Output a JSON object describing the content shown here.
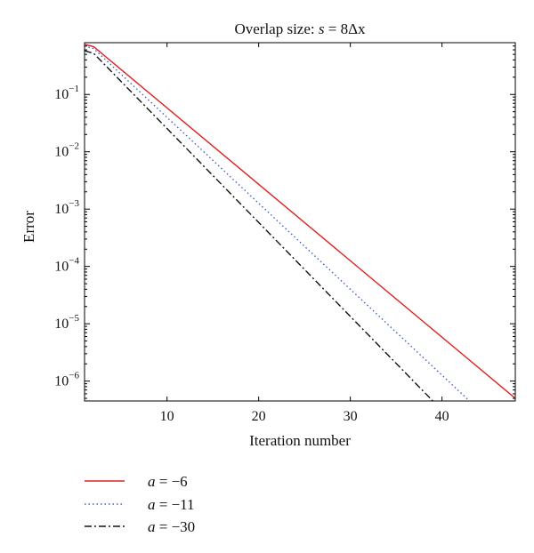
{
  "chart_data": {
    "type": "line",
    "title_prefix": "Overlap size: ",
    "title_var": "s",
    "title_suffix": " = 8Δx",
    "xlabel": "Iteration number",
    "ylabel": "Error",
    "x_scale": "linear",
    "y_scale": "log",
    "xlim": [
      1,
      48
    ],
    "ylim": [
      4.5e-07,
      0.8
    ],
    "x_ticks": [
      10,
      20,
      30,
      40
    ],
    "y_tick_exponents": [
      -1,
      -2,
      -3,
      -4,
      -5,
      -6
    ],
    "y_tick_base": "10",
    "grid": false,
    "legend_position": "below-left",
    "series": [
      {
        "name_var": "a",
        "name_value": " = −6",
        "color": "#e02020",
        "style": "solid",
        "x": [
          1,
          2,
          48
        ],
        "y": [
          0.75,
          0.68,
          5e-07
        ]
      },
      {
        "name_var": "a",
        "name_value": " = −11",
        "color": "#3a5fcd",
        "style": "dotted",
        "x": [
          1,
          2,
          43
        ],
        "y": [
          0.7,
          0.63,
          4.5e-07
        ]
      },
      {
        "name_var": "a",
        "name_value": " = −30",
        "color": "#111111",
        "style": "dashdot",
        "x": [
          1,
          2,
          39
        ],
        "y": [
          0.58,
          0.52,
          4.5e-07
        ]
      }
    ]
  }
}
